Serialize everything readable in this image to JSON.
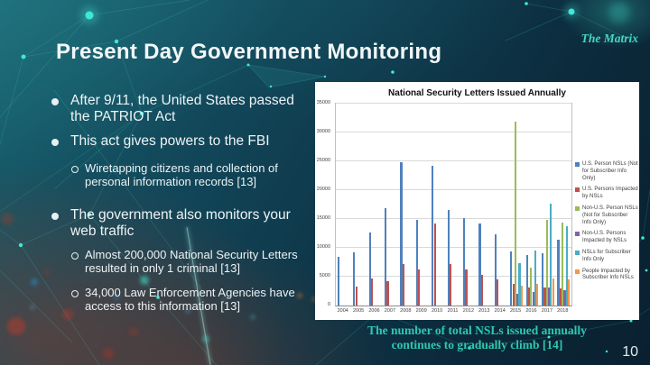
{
  "slide": {
    "brand": "The Matrix",
    "title": "Present Day Government Monitoring",
    "page_number": "10",
    "bullets": [
      {
        "level": 1,
        "text": "After 9/11, the United States passed the PATRIOT Act"
      },
      {
        "level": 1,
        "text": "This act gives powers to the FBI"
      },
      {
        "level": 2,
        "text": "Wiretapping citizens and collection of personal information records [13]"
      },
      {
        "level": 1,
        "text": "The government also monitors your web traffic"
      },
      {
        "level": 2,
        "text": "Almost 200,000 National Security Letters resulted in only 1 criminal [13]"
      },
      {
        "level": 2,
        "text": "34,000 Law Enforcement Agencies have access to this information [13]"
      }
    ],
    "caption": "The number of total NSLs issued annually continues to gradually climb [14]",
    "colors": {
      "background_teal": "#124a5c",
      "accent_teal": "#46d7c4",
      "caption_teal": "#2fc7b2",
      "text_white": "#f2f6f7"
    }
  },
  "chart_data": {
    "type": "bar",
    "title": "National Security Letters Issued Annually",
    "xlabel": "",
    "ylabel": "",
    "ylim": [
      0,
      35000
    ],
    "ytick_step": 5000,
    "grid": true,
    "legend_position": "right",
    "categories": [
      2004,
      2005,
      2006,
      2007,
      2008,
      2009,
      2010,
      2011,
      2012,
      2013,
      2014,
      2015,
      2016,
      2017,
      2018
    ],
    "series": [
      {
        "name": "U.S. Person NSLs (Not for Subscriber Info Only)",
        "color": "#4F81BD",
        "values": [
          8500,
          9300,
          12600,
          16900,
          24900,
          14800,
          24300,
          16600,
          15200,
          14300,
          12400,
          9400,
          8800,
          9000,
          11400
        ]
      },
      {
        "name": "U.S. Persons Impacted by NSLs",
        "color": "#C0504D",
        "values": [
          null,
          3300,
          4700,
          4300,
          7200,
          6200,
          14200,
          7200,
          6300,
          5300,
          4600,
          3700,
          3200,
          3100,
          2900
        ]
      },
      {
        "name": "Non-U.S. Person NSLs (Not for Subscriber Info Only)",
        "color": "#9BBB59",
        "values": [
          null,
          null,
          null,
          null,
          null,
          null,
          null,
          null,
          null,
          null,
          null,
          31900,
          6600,
          14800,
          14400
        ]
      },
      {
        "name": "Non-U.S. Persons Impacted by NSLs",
        "color": "#8064A2",
        "values": [
          null,
          null,
          null,
          null,
          null,
          null,
          null,
          null,
          null,
          null,
          null,
          2100,
          2300,
          3100,
          2700
        ]
      },
      {
        "name": "NSLs for Subscriber Info Only",
        "color": "#4BACC6",
        "values": [
          null,
          null,
          null,
          null,
          null,
          null,
          null,
          null,
          null,
          null,
          null,
          7400,
          9500,
          17600,
          13800
        ]
      },
      {
        "name": "People Impacted by Subscriber Info NSLs",
        "color": "#F79646",
        "values": [
          null,
          null,
          null,
          null,
          null,
          null,
          null,
          null,
          null,
          null,
          null,
          3400,
          3700,
          4700,
          4500
        ]
      }
    ]
  }
}
